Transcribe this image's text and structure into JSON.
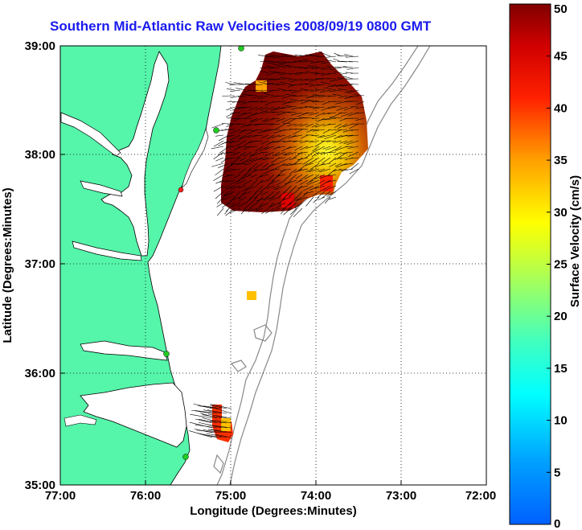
{
  "title": "Southern Mid-Atlantic Raw Velocities 2008/09/19 0800 GMT",
  "axes": {
    "xlabel": "Longitude (Degrees:Minutes)",
    "ylabel": "Latitude (Degrees:Minutes)",
    "xticks": [
      "77:00",
      "76:00",
      "75:00",
      "74:00",
      "73:00",
      "72:00"
    ],
    "yticks": [
      "39:00",
      "38:00",
      "37:00",
      "36:00",
      "35:00"
    ],
    "xlim": [
      -77,
      -72
    ],
    "ylim": [
      35,
      39
    ]
  },
  "colorbar": {
    "label": "Surface Velocity (cm/s)",
    "ticks": [
      "0",
      "5",
      "10",
      "15",
      "20",
      "25",
      "30",
      "35",
      "40",
      "45",
      "50"
    ],
    "range": [
      0,
      50
    ]
  },
  "colors": {
    "land": "#55f5aa",
    "title": "#1a1aee",
    "contour": "#888888",
    "station_marker": "#22cc22"
  }
}
